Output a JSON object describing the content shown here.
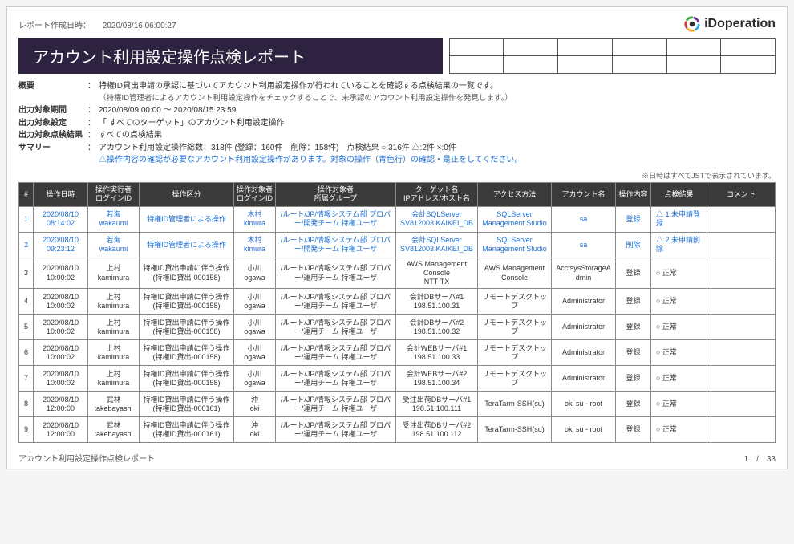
{
  "report_date_label": "レポート作成日時：",
  "report_date_value": "2020/08/16 06:00:27",
  "logo_text": "iDoperation",
  "logo_colors": [
    "#2aa8e0",
    "#f5a623",
    "#d23c3c",
    "#3aaa35",
    "#6e2f8e"
  ],
  "title": "アカウント利用設定操作点検レポート",
  "meta": {
    "overview_label": "概要",
    "overview_value": "特権ID貸出申請の承認に基づいてアカウント利用設定操作が行われていることを確認する点検結果の一覧です。",
    "overview_sub": "（特権ID管理者によるアカウント利用設定操作をチェックすることで、未承認のアカウント利用設定操作を発見します。）",
    "period_label": "出力対象期間",
    "period_value": "2020/08/09 00:00 ～ 2020/08/15 23:59",
    "setting_label": "出力対象設定",
    "setting_value": "「 すべてのターゲット」のアカウント利用設定操作",
    "result_label": "出力対象点検結果",
    "result_value": "すべての点検結果",
    "summary_label": "サマリー",
    "summary_value": "アカウント利用設定操作総数：318件 (登録：160件　削除：158件)　点検結果 ○:316件 △:2件 ×:0件",
    "warning": "△操作内容の確認が必要なアカウント利用設定操作があります。対象の操作（青色行）の確認・是正をしてください。"
  },
  "note": "※日時はすべてJSTで表示されています。",
  "columns": [
    "#",
    "操作日時",
    "操作実行者\nログインID",
    "操作区分",
    "操作対象者\nログインID",
    "操作対象者\n所属グループ",
    "ターゲット名\nIPアドレス/ホスト名",
    "アクセス方法",
    "アカウント名",
    "操作内容",
    "点検結果",
    "コメント"
  ],
  "rows": [
    {
      "hl": true,
      "n": "1",
      "dt": "2020/08/10\n08:14:02",
      "actor": "若海\nwakaumi",
      "op": "特権ID管理者による操作",
      "subj": "木村\nkimura",
      "grp": "/ルート/JP/情報システム部 プロパー/開発チーム 特権ユーザ",
      "tgt": "会計SQLServer\nSV812003:KAIKEI_DB",
      "acc": "SQLServer Management Studio",
      "acct": "sa",
      "act": "登録",
      "res": "△ 1.未申請登録",
      "cmt": ""
    },
    {
      "hl": true,
      "n": "2",
      "dt": "2020/08/10\n09:23:12",
      "actor": "若海\nwakaumi",
      "op": "特権ID管理者による操作",
      "subj": "木村\nkimura",
      "grp": "/ルート/JP/情報システム部 プロパー/開発チーム 特権ユーザ",
      "tgt": "会計SQLServer\nSV812003:KAIKEI_DB",
      "acc": "SQLServer Management Studio",
      "acct": "sa",
      "act": "削除",
      "res": "△ 2.未申請削除",
      "cmt": ""
    },
    {
      "hl": false,
      "n": "3",
      "dt": "2020/08/10\n10:00:02",
      "actor": "上村\nkamimura",
      "op": "特権ID貸出申請に伴う操作\n(特権ID貸出-000158)",
      "subj": "小川\nogawa",
      "grp": "/ルート/JP/情報システム部 プロパー/運用チーム 特権ユーザ",
      "tgt": "AWS Management Console\nNTT-TX",
      "acc": "AWS Management Console",
      "acct": "AcctsysStorageAdmin",
      "act": "登録",
      "res": "○ 正常",
      "cmt": ""
    },
    {
      "hl": false,
      "n": "4",
      "dt": "2020/08/10\n10:00:02",
      "actor": "上村\nkamimura",
      "op": "特権ID貸出申請に伴う操作\n(特権ID貸出-000158)",
      "subj": "小川\nogawa",
      "grp": "/ルート/JP/情報システム部 プロパー/運用チーム 特権ユーザ",
      "tgt": "会計DBサーバ#1\n198.51.100.31",
      "acc": "リモートデスクトップ",
      "acct": "Administrator",
      "act": "登録",
      "res": "○ 正常",
      "cmt": ""
    },
    {
      "hl": false,
      "n": "5",
      "dt": "2020/08/10\n10:00:02",
      "actor": "上村\nkamimura",
      "op": "特権ID貸出申請に伴う操作\n(特権ID貸出-000158)",
      "subj": "小川\nogawa",
      "grp": "/ルート/JP/情報システム部 プロパー/運用チーム 特権ユーザ",
      "tgt": "会計DBサーバ#2\n198.51.100.32",
      "acc": "リモートデスクトップ",
      "acct": "Administrator",
      "act": "登録",
      "res": "○ 正常",
      "cmt": ""
    },
    {
      "hl": false,
      "n": "6",
      "dt": "2020/08/10\n10:00:02",
      "actor": "上村\nkamimura",
      "op": "特権ID貸出申請に伴う操作\n(特権ID貸出-000158)",
      "subj": "小川\nogawa",
      "grp": "/ルート/JP/情報システム部 プロパー/運用チーム 特権ユーザ",
      "tgt": "会計WEBサーバ#1\n198.51.100.33",
      "acc": "リモートデスクトップ",
      "acct": "Administrator",
      "act": "登録",
      "res": "○ 正常",
      "cmt": ""
    },
    {
      "hl": false,
      "n": "7",
      "dt": "2020/08/10\n10:00:02",
      "actor": "上村\nkamimura",
      "op": "特権ID貸出申請に伴う操作\n(特権ID貸出-000158)",
      "subj": "小川\nogawa",
      "grp": "/ルート/JP/情報システム部 プロパー/運用チーム 特権ユーザ",
      "tgt": "会計WEBサーバ#2\n198.51.100.34",
      "acc": "リモートデスクトップ",
      "acct": "Administrator",
      "act": "登録",
      "res": "○ 正常",
      "cmt": ""
    },
    {
      "hl": false,
      "n": "8",
      "dt": "2020/08/10\n12:00:00",
      "actor": "武林\ntakebayashi",
      "op": "特権ID貸出申請に伴う操作\n(特権ID貸出-000161)",
      "subj": "沖\noki",
      "grp": "/ルート/JP/情報システム部 プロパー/運用チーム 特権ユーザ",
      "tgt": "受注出荷DBサーバ#1\n198.51.100.111",
      "acc": "TeraTarm-SSH(su)",
      "acct": "oki su - root",
      "act": "登録",
      "res": "○ 正常",
      "cmt": ""
    },
    {
      "hl": false,
      "n": "9",
      "dt": "2020/08/10\n12:00:00",
      "actor": "武林\ntakebayashi",
      "op": "特権ID貸出申請に伴う操作\n(特権ID貸出-000161)",
      "subj": "沖\noki",
      "grp": "/ルート/JP/情報システム部 プロパー/運用チーム 特権ユーザ",
      "tgt": "受注出荷DBサーバ#2\n198.51.100.112",
      "acc": "TeraTarm-SSH(su)",
      "acct": "oki su - root",
      "act": "登録",
      "res": "○ 正常",
      "cmt": ""
    }
  ],
  "footer_left": "アカウント利用設定操作点検レポート",
  "footer_right": "1　/　33"
}
